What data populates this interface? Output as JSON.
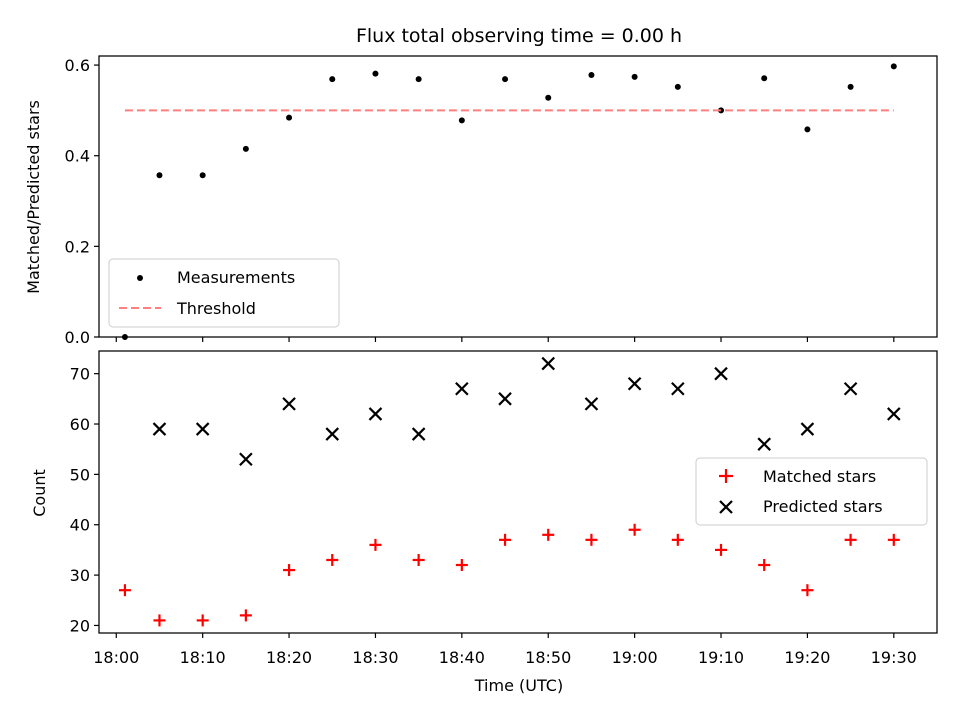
{
  "chart_data": [
    {
      "type": "scatter",
      "title": "Flux total observing time = 0.00 h",
      "xlabel": "",
      "ylabel": "Matched/Predicted stars",
      "ylim": [
        0.0,
        0.62
      ],
      "xlim": [
        "17:58",
        "19:35"
      ],
      "grid": false,
      "legend_position": "lower-left",
      "yticks": [
        "0.0",
        "0.2",
        "0.4",
        "0.6"
      ],
      "series": [
        {
          "name": "Measurements",
          "style": "dot",
          "color": "#000000",
          "points": [
            {
              "x": "18:01",
              "y": 0.0
            },
            {
              "x": "18:05",
              "y": 0.357
            },
            {
              "x": "18:10",
              "y": 0.357
            },
            {
              "x": "18:15",
              "y": 0.415
            },
            {
              "x": "18:20",
              "y": 0.484
            },
            {
              "x": "18:25",
              "y": 0.569
            },
            {
              "x": "18:30",
              "y": 0.581
            },
            {
              "x": "18:35",
              "y": 0.569
            },
            {
              "x": "18:40",
              "y": 0.478
            },
            {
              "x": "18:45",
              "y": 0.569
            },
            {
              "x": "18:50",
              "y": 0.528
            },
            {
              "x": "18:55",
              "y": 0.578
            },
            {
              "x": "19:00",
              "y": 0.574
            },
            {
              "x": "19:05",
              "y": 0.552
            },
            {
              "x": "19:10",
              "y": 0.5
            },
            {
              "x": "19:15",
              "y": 0.571
            },
            {
              "x": "19:20",
              "y": 0.458
            },
            {
              "x": "19:25",
              "y": 0.552
            },
            {
              "x": "19:30",
              "y": 0.597
            }
          ]
        },
        {
          "name": "Threshold",
          "style": "dashed-line",
          "color": "#ff7f7f",
          "points": [
            {
              "x": "18:01",
              "y": 0.5
            },
            {
              "x": "19:30",
              "y": 0.5
            }
          ]
        }
      ]
    },
    {
      "type": "scatter",
      "title": "",
      "xlabel": "Time (UTC)",
      "ylabel": "Count",
      "ylim": [
        18.5,
        74.5
      ],
      "xlim": [
        "17:58",
        "19:35"
      ],
      "grid": false,
      "legend_position": "center-right",
      "yticks": [
        "20",
        "30",
        "40",
        "50",
        "60",
        "70"
      ],
      "xticks": [
        "18:00",
        "18:10",
        "18:20",
        "18:30",
        "18:40",
        "18:50",
        "19:00",
        "19:10",
        "19:20",
        "19:30"
      ],
      "series": [
        {
          "name": "Matched stars",
          "style": "plus",
          "color": "#ff0000",
          "points": [
            {
              "x": "18:01",
              "y": 27
            },
            {
              "x": "18:05",
              "y": 21
            },
            {
              "x": "18:10",
              "y": 21
            },
            {
              "x": "18:15",
              "y": 22
            },
            {
              "x": "18:20",
              "y": 31
            },
            {
              "x": "18:25",
              "y": 33
            },
            {
              "x": "18:30",
              "y": 36
            },
            {
              "x": "18:35",
              "y": 33
            },
            {
              "x": "18:40",
              "y": 32
            },
            {
              "x": "18:45",
              "y": 37
            },
            {
              "x": "18:50",
              "y": 38
            },
            {
              "x": "18:55",
              "y": 37
            },
            {
              "x": "19:00",
              "y": 39
            },
            {
              "x": "19:05",
              "y": 37
            },
            {
              "x": "19:10",
              "y": 35
            },
            {
              "x": "19:15",
              "y": 32
            },
            {
              "x": "19:20",
              "y": 27
            },
            {
              "x": "19:25",
              "y": 37
            },
            {
              "x": "19:30",
              "y": 37
            }
          ]
        },
        {
          "name": "Predicted stars",
          "style": "cross",
          "color": "#000000",
          "points": [
            {
              "x": "18:05",
              "y": 59
            },
            {
              "x": "18:10",
              "y": 59
            },
            {
              "x": "18:15",
              "y": 53
            },
            {
              "x": "18:20",
              "y": 64
            },
            {
              "x": "18:25",
              "y": 58
            },
            {
              "x": "18:30",
              "y": 62
            },
            {
              "x": "18:35",
              "y": 58
            },
            {
              "x": "18:40",
              "y": 67
            },
            {
              "x": "18:45",
              "y": 65
            },
            {
              "x": "18:50",
              "y": 72
            },
            {
              "x": "18:55",
              "y": 64
            },
            {
              "x": "19:00",
              "y": 68
            },
            {
              "x": "19:05",
              "y": 67
            },
            {
              "x": "19:10",
              "y": 70
            },
            {
              "x": "19:15",
              "y": 56
            },
            {
              "x": "19:20",
              "y": 59
            },
            {
              "x": "19:25",
              "y": 67
            },
            {
              "x": "19:30",
              "y": 62
            }
          ]
        }
      ]
    }
  ]
}
